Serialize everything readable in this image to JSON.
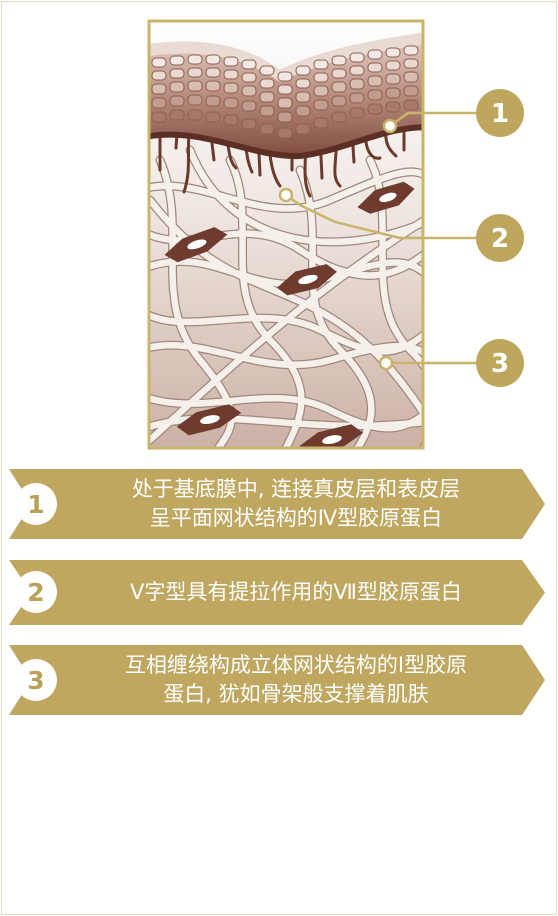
{
  "colors": {
    "gold": "#c0a760",
    "gold_dark": "#b29a55",
    "brown_dark": "#6b3a2c",
    "brown_mid": "#9a6656",
    "fiber": "#f5efe9",
    "fiber_outline": "#a38a80"
  },
  "diagram": {
    "markers": [
      "1",
      "2",
      "3"
    ]
  },
  "items": [
    {
      "number": "1",
      "text": "处于基底膜中, 连接真皮层和表皮层\n呈平面网状结构的Ⅳ型胶原蛋白"
    },
    {
      "number": "2",
      "text": "Ⅴ字型具有提拉作用的Ⅶ型胶原蛋白"
    },
    {
      "number": "3",
      "text": "互相缠绕构成立体网状结构的Ⅰ型胶原\n蛋白, 犹如骨架般支撑着肌肤"
    }
  ]
}
